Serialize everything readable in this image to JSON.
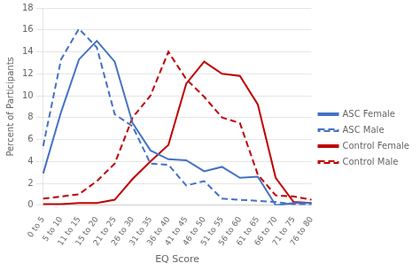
{
  "chart_data": {
    "type": "line",
    "xlabel": "EQ Score",
    "ylabel": "Percent of Participants",
    "categories": [
      "0 to 5",
      "5 to 10",
      "11 to 15",
      "15 to 20",
      "21 to 25",
      "26 to 30",
      "31 to 35",
      "36 to 40",
      "41 to 45",
      "46 to 50",
      "51 to 55",
      "56 to 60",
      "61 to 65",
      "66 to 70",
      "71 to 75",
      "76 to 80"
    ],
    "series": [
      {
        "name": "ASC Female",
        "color": "#4472c4",
        "line_style": "solid",
        "values": [
          2.9,
          8.5,
          13.3,
          15.0,
          13.1,
          7.5,
          5.0,
          4.2,
          4.1,
          3.1,
          3.5,
          2.5,
          2.6,
          0.0,
          0.2,
          0.2
        ]
      },
      {
        "name": "ASC Male",
        "color": "#4472c4",
        "line_style": "dashed",
        "values": [
          5.4,
          13.3,
          16.1,
          14.4,
          8.3,
          7.2,
          3.8,
          3.7,
          1.8,
          2.2,
          0.6,
          0.5,
          0.4,
          0.3,
          0.1,
          0.1
        ]
      },
      {
        "name": "Control Female",
        "color": "#c00000",
        "line_style": "solid",
        "values": [
          0.1,
          0.1,
          0.2,
          0.2,
          0.5,
          2.4,
          4.0,
          5.5,
          11.1,
          13.1,
          12.0,
          11.8,
          9.2,
          2.5,
          0.3,
          0.2
        ]
      },
      {
        "name": "Control Male",
        "color": "#c00000",
        "line_style": "dashed",
        "values": [
          0.6,
          0.8,
          1.0,
          2.2,
          3.8,
          8.0,
          10.0,
          14.0,
          11.5,
          9.9,
          8.0,
          7.5,
          2.8,
          0.9,
          0.8,
          0.5
        ]
      }
    ],
    "ylim": [
      0,
      18
    ],
    "yticks": [
      0,
      2,
      4,
      6,
      8,
      10,
      12,
      14,
      16,
      18
    ],
    "grid": "y",
    "legend": "right"
  }
}
